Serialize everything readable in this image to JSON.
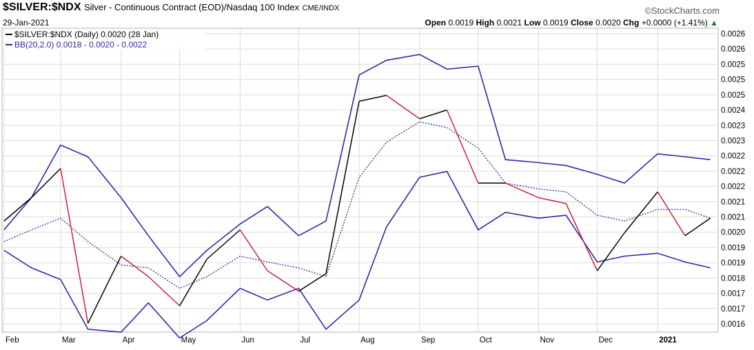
{
  "header": {
    "symbol": "$SILVER:$NDX",
    "description": "Silver - Continuous Contract (EOD)/Nasdaq 100 Index",
    "exchange": "CME/INDX",
    "brand": "©StockCharts.com",
    "date": "29-Jan-2021",
    "open_label": "Open",
    "open": "0.0019",
    "high_label": "High",
    "high": "0.0021",
    "low_label": "Low",
    "low": "0.0019",
    "close_label": "Close",
    "close": "0.0020",
    "chg_label": "Chg",
    "chg": "+0.0000 (+1.41%)",
    "chg_arrow": "▲"
  },
  "legend": {
    "price": "$SILVER:$NDX (Daily) 0.0020 (28 Jan)",
    "bb": "BB(20,2.0) 0.0018 - 0.0020 - 0.0022"
  },
  "colors": {
    "up": "#000000",
    "down": "#cc1f3c",
    "band": "#2a2aa8",
    "mid": "#2a2aa8",
    "grid": "#dcdcdc"
  },
  "chart_data": {
    "type": "line",
    "ylim": [
      0.00159,
      0.00263
    ],
    "y_tick_labels": [
      "0.0026",
      "0.0026",
      "0.0025",
      "0.0025",
      "0.0025",
      "0.0024",
      "0.0023",
      "0.0023",
      "0.0022",
      "0.0022",
      "0.0022",
      "0.0021",
      "0.0021",
      "0.0020",
      "0.0019",
      "0.0019",
      "0.0018",
      "0.0017",
      "0.0017",
      "0.0016"
    ],
    "x_tick_labels": [
      "Feb",
      "Mar",
      "Apr",
      "May",
      "Jun",
      "Jul",
      "Aug",
      "Sep",
      "Oct",
      "Nov",
      "Dec",
      "2021"
    ],
    "x": [
      "2020-02-01",
      "2020-02-15",
      "2020-03-01",
      "2020-03-15",
      "2020-04-01",
      "2020-04-15",
      "2020-05-01",
      "2020-05-15",
      "2020-06-01",
      "2020-06-15",
      "2020-07-01",
      "2020-07-15",
      "2020-08-01",
      "2020-08-15",
      "2020-09-01",
      "2020-09-15",
      "2020-10-01",
      "2020-10-15",
      "2020-11-01",
      "2020-11-15",
      "2020-12-01",
      "2020-12-15",
      "2021-01-01",
      "2021-01-15",
      "2021-01-28"
    ],
    "series": [
      {
        "values": [
          0.00197,
          0.00205,
          0.00215,
          0.00162,
          0.00185,
          0.00178,
          0.00168,
          0.00184,
          0.00194,
          0.0018,
          0.00173,
          0.00179,
          0.00238,
          0.0024,
          0.00232,
          0.00235,
          0.0021,
          0.0021,
          0.00205,
          0.00203,
          0.0018,
          0.00193,
          0.00207,
          0.00192,
          0.00198
        ]
      },
      {
        "values": [
          0.00194,
          0.00205,
          0.00223,
          0.00219,
          0.00205,
          0.00192,
          0.00178,
          0.00187,
          0.00196,
          0.00202,
          0.00192,
          0.00197,
          0.00247,
          0.00252,
          0.00254,
          0.00249,
          0.0025,
          0.00218,
          0.00217,
          0.00216,
          0.00213,
          0.0021,
          0.0022,
          0.00219,
          0.00218
        ]
      },
      {
        "values": [
          0.0019,
          0.00194,
          0.00198,
          0.0019,
          0.00182,
          0.00181,
          0.00174,
          0.00178,
          0.00185,
          0.00183,
          0.00181,
          0.00178,
          0.00212,
          0.00224,
          0.00231,
          0.00229,
          0.00222,
          0.0021,
          0.00208,
          0.00207,
          0.00199,
          0.00197,
          0.00201,
          0.00201,
          0.00198
        ]
      },
      {
        "values": [
          0.00187,
          0.00181,
          0.00177,
          0.0016,
          0.00159,
          0.00169,
          0.00157,
          0.00163,
          0.00174,
          0.0017,
          0.00174,
          0.0016,
          0.0017,
          0.00195,
          0.00212,
          0.00214,
          0.00194,
          0.002,
          0.00198,
          0.00199,
          0.00183,
          0.00185,
          0.00186,
          0.00183,
          0.00181
        ]
      }
    ]
  }
}
